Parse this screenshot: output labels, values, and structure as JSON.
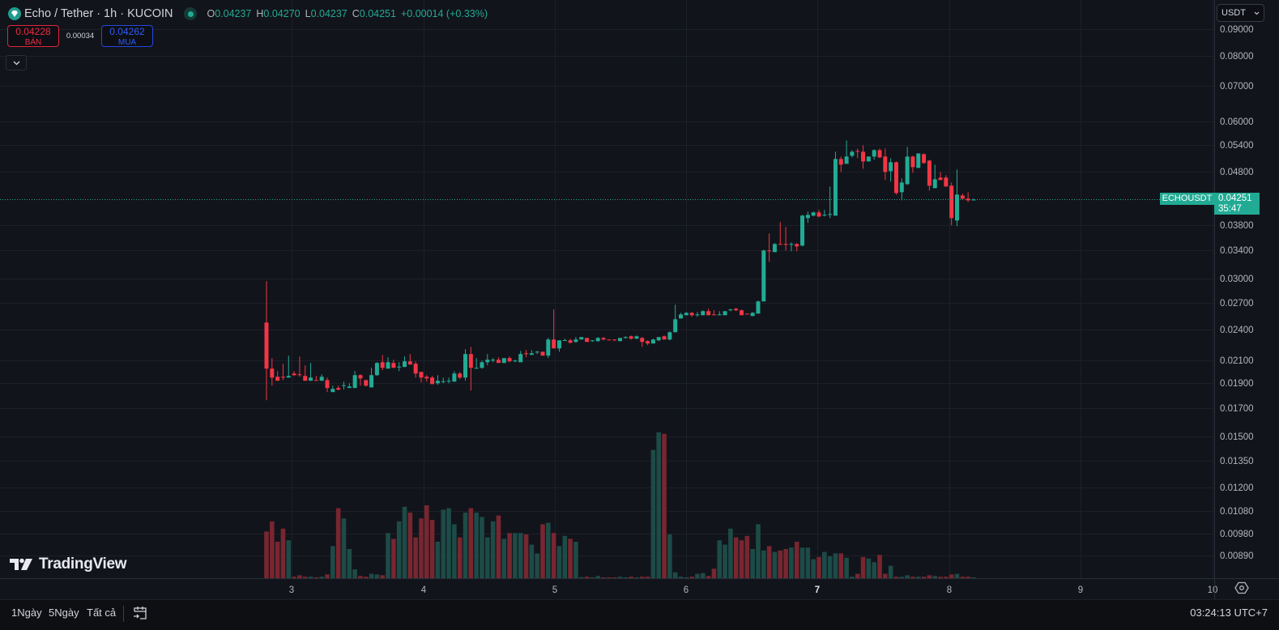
{
  "header": {
    "title": "Echo / Tether · 1h · KUCOIN",
    "ohlc": {
      "o_label": "O",
      "o": "0.04237",
      "h_label": "H",
      "h": "0.04270",
      "l_label": "L",
      "l": "0.04237",
      "c_label": "C",
      "c": "0.04251",
      "change": "+0.00014 (+0.33%)"
    },
    "status_color": "#22ab94"
  },
  "trade": {
    "sell_price": "0.04228",
    "sell_label": "BÁN",
    "spread": "0.00034",
    "buy_price": "0.04262",
    "buy_label": "MUA"
  },
  "currency_select": "USDT",
  "price_marker": {
    "symbol": "ECHOUSDT",
    "price": "0.04251",
    "countdown": "35:47"
  },
  "branding": "TradingView",
  "bottom_bar": {
    "ranges": [
      "1Ngày",
      "5Ngày",
      "Tất cả"
    ],
    "clock": "03:24:13 UTC+7"
  },
  "colors": {
    "up": "#22ab94",
    "down": "#f23645",
    "up_volume": "#1d4b47",
    "down_volume": "#782630",
    "background": "#12141b"
  },
  "chart_data": {
    "type": "candlestick",
    "symbol": "ECHOUSDT",
    "interval": "1h",
    "y_scale": "log",
    "ylim": [
      0.00805,
      0.1022
    ],
    "grid": true,
    "y_ticks": [
      "0.09000",
      "0.08000",
      "0.07000",
      "0.06000",
      "0.05400",
      "0.04800",
      "0.03800",
      "0.03400",
      "0.03000",
      "0.02700",
      "0.02400",
      "0.02100",
      "0.01900",
      "0.01700",
      "0.01500",
      "0.01350",
      "0.01200",
      "0.01080",
      "0.00980",
      "0.00890"
    ],
    "x_ticks": [
      "3",
      "4",
      "5",
      "6",
      "7",
      "8",
      "9",
      "10"
    ],
    "x_tick_bold": "7",
    "ohlc_fields": [
      "open",
      "high",
      "low",
      "close"
    ],
    "candles": [
      [
        0.02476,
        0.02969,
        0.0176,
        0.02022
      ],
      [
        0.02022,
        0.02118,
        0.01876,
        0.01944
      ],
      [
        0.01951,
        0.02,
        0.01917,
        0.01917
      ],
      [
        0.01951,
        0.02066,
        0.01923,
        0.01944
      ],
      [
        0.01944,
        0.02141,
        0.01944,
        0.01958
      ],
      [
        0.01979,
        0.02,
        0.01958,
        0.01965
      ],
      [
        0.01972,
        0.02133,
        0.01951,
        0.01965
      ],
      [
        0.01958,
        0.02051,
        0.01917,
        0.01917
      ],
      [
        0.01917,
        0.02073,
        0.01917,
        0.01944
      ],
      [
        0.01923,
        0.01958,
        0.01917,
        0.01917
      ],
      [
        0.01917,
        0.01972,
        0.01917,
        0.01951
      ],
      [
        0.01923,
        0.01944,
        0.01824,
        0.01857
      ],
      [
        0.01824,
        0.01876,
        0.01824,
        0.0185
      ],
      [
        0.01857,
        0.01876,
        0.01837,
        0.01844
      ],
      [
        0.01876,
        0.0191,
        0.01844,
        0.0188
      ],
      [
        0.01857,
        0.01896,
        0.01857,
        0.01869
      ],
      [
        0.01857,
        0.02,
        0.01857,
        0.01965
      ],
      [
        0.01965,
        0.01972,
        0.01876,
        0.01937
      ],
      [
        0.01923,
        0.01923,
        0.01869,
        0.01876
      ],
      [
        0.01862,
        0.02029,
        0.01862,
        0.01965
      ],
      [
        0.01965,
        0.0208,
        0.01958,
        0.02073
      ],
      [
        0.0208,
        0.02148,
        0.02008,
        0.02029
      ],
      [
        0.02022,
        0.02126,
        0.02022,
        0.0208
      ],
      [
        0.02073,
        0.02103,
        0.02029,
        0.02029
      ],
      [
        0.02037,
        0.0208,
        0.02,
        0.0204
      ],
      [
        0.02037,
        0.02133,
        0.02037,
        0.02088
      ],
      [
        0.02088,
        0.02156,
        0.02059,
        0.02059
      ],
      [
        0.02066,
        0.02088,
        0.01944,
        0.01979
      ],
      [
        0.01993,
        0.01993,
        0.01903,
        0.01944
      ],
      [
        0.01951,
        0.01965,
        0.0191,
        0.01937
      ],
      [
        0.01944,
        0.01958,
        0.01889,
        0.01889
      ],
      [
        0.01896,
        0.01965,
        0.01883,
        0.01917
      ],
      [
        0.0191,
        0.01944,
        0.01896,
        0.01913
      ],
      [
        0.01914,
        0.01944,
        0.01896,
        0.01917
      ],
      [
        0.0191,
        0.02,
        0.0191,
        0.01979
      ],
      [
        0.01979,
        0.01993,
        0.0193,
        0.01944
      ],
      [
        0.01944,
        0.02202,
        0.01917,
        0.02156
      ],
      [
        0.02156,
        0.02225,
        0.01837,
        0.02029
      ],
      [
        0.02022,
        0.02118,
        0.02022,
        0.02029
      ],
      [
        0.02029,
        0.02095,
        0.02022,
        0.0208
      ],
      [
        0.0208,
        0.02156,
        0.02051,
        0.02103
      ],
      [
        0.02095,
        0.02118,
        0.0208,
        0.02103
      ],
      [
        0.02103,
        0.02126,
        0.02073,
        0.02073
      ],
      [
        0.02073,
        0.02118,
        0.02073,
        0.02118
      ],
      [
        0.02118,
        0.02133,
        0.0208,
        0.02088
      ],
      [
        0.02088,
        0.02103,
        0.0208,
        0.02095
      ],
      [
        0.0208,
        0.02186,
        0.0208,
        0.02156
      ],
      [
        0.02163,
        0.02194,
        0.02126,
        0.02156
      ],
      [
        0.02148,
        0.02194,
        0.02148,
        0.02163
      ],
      [
        0.02171,
        0.02186,
        0.02156,
        0.02178
      ],
      [
        0.02178,
        0.02178,
        0.02141,
        0.02141
      ],
      [
        0.02141,
        0.02315,
        0.02118,
        0.02298
      ],
      [
        0.02298,
        0.02622,
        0.0221,
        0.0221
      ],
      [
        0.0221,
        0.0229,
        0.02178,
        0.0229
      ],
      [
        0.0229,
        0.02306,
        0.02282,
        0.02292
      ],
      [
        0.0229,
        0.02306,
        0.02258,
        0.02266
      ],
      [
        0.02274,
        0.02323,
        0.02266,
        0.02298
      ],
      [
        0.02298,
        0.02323,
        0.02298,
        0.02323
      ],
      [
        0.02314,
        0.02314,
        0.02274,
        0.02274
      ],
      [
        0.02282,
        0.0229,
        0.02274,
        0.0229
      ],
      [
        0.02282,
        0.02323,
        0.02274,
        0.02314
      ],
      [
        0.02314,
        0.02323,
        0.0229,
        0.02298
      ],
      [
        0.02298,
        0.02298,
        0.0229,
        0.0229
      ],
      [
        0.02298,
        0.02298,
        0.02282,
        0.0229
      ],
      [
        0.02282,
        0.02314,
        0.02282,
        0.02314
      ],
      [
        0.02314,
        0.02331,
        0.02306,
        0.02323
      ],
      [
        0.02331,
        0.02339,
        0.02298,
        0.02306
      ],
      [
        0.02306,
        0.02339,
        0.02306,
        0.02331
      ],
      [
        0.02314,
        0.02323,
        0.02225,
        0.02274
      ],
      [
        0.02282,
        0.0229,
        0.02242,
        0.02258
      ],
      [
        0.02258,
        0.02306,
        0.02258,
        0.02298
      ],
      [
        0.0229,
        0.02323,
        0.02282,
        0.02323
      ],
      [
        0.02331,
        0.02339,
        0.02298,
        0.02298
      ],
      [
        0.02298,
        0.02381,
        0.0229,
        0.02373
      ],
      [
        0.02373,
        0.02678,
        0.02373,
        0.02512
      ],
      [
        0.02521,
        0.02584,
        0.02521,
        0.02566
      ],
      [
        0.02557,
        0.02593,
        0.02557,
        0.02584
      ],
      [
        0.02584,
        0.02593,
        0.02539,
        0.02557
      ],
      [
        0.02557,
        0.02593,
        0.02539,
        0.02566
      ],
      [
        0.02557,
        0.02613,
        0.02557,
        0.02603
      ],
      [
        0.02603,
        0.02631,
        0.02557,
        0.02557
      ],
      [
        0.02566,
        0.02613,
        0.02557,
        0.02557
      ],
      [
        0.02557,
        0.02603,
        0.02557,
        0.02566
      ],
      [
        0.02557,
        0.02603,
        0.02557,
        0.02603
      ],
      [
        0.02613,
        0.02631,
        0.02603,
        0.02622
      ],
      [
        0.02631,
        0.02641,
        0.02603,
        0.02613
      ],
      [
        0.02613,
        0.02622,
        0.02557,
        0.02557
      ],
      [
        0.02575,
        0.02575,
        0.02566,
        0.02566
      ],
      [
        0.02548,
        0.02593,
        0.02548,
        0.02584
      ],
      [
        0.02575,
        0.02727,
        0.02575,
        0.02717
      ],
      [
        0.02717,
        0.03411,
        0.02717,
        0.03399
      ],
      [
        0.03399,
        0.03662,
        0.03234,
        0.03387
      ],
      [
        0.03375,
        0.0351,
        0.03375,
        0.03497
      ],
      [
        0.03497,
        0.0385,
        0.03485,
        0.03485
      ],
      [
        0.03497,
        0.03769,
        0.03399,
        0.03485
      ],
      [
        0.03485,
        0.03522,
        0.03387,
        0.03497
      ],
      [
        0.03497,
        0.0351,
        0.03387,
        0.0346
      ],
      [
        0.03473,
        0.03975,
        0.0346,
        0.03961
      ],
      [
        0.03919,
        0.04032,
        0.03837,
        0.03975
      ],
      [
        0.03961,
        0.04032,
        0.03947,
        0.04018
      ],
      [
        0.04018,
        0.04061,
        0.03933,
        0.03947
      ],
      [
        0.03975,
        0.04061,
        0.03947,
        0.03978
      ],
      [
        0.03975,
        0.04502,
        0.03919,
        0.03989
      ],
      [
        0.03961,
        0.05245,
        0.03961,
        0.05081
      ],
      [
        0.05081,
        0.05136,
        0.048,
        0.04956
      ],
      [
        0.04974,
        0.05513,
        0.04974,
        0.05136
      ],
      [
        0.05154,
        0.05283,
        0.05117,
        0.05245
      ],
      [
        0.05264,
        0.05321,
        0.05099,
        0.05245
      ],
      [
        0.05245,
        0.05397,
        0.04868,
        0.05027
      ],
      [
        0.05027,
        0.05136,
        0.05027,
        0.05136
      ],
      [
        0.05136,
        0.05302,
        0.05063,
        0.05283
      ],
      [
        0.05283,
        0.05321,
        0.05099,
        0.05117
      ],
      [
        0.05136,
        0.05321,
        0.04632,
        0.048
      ],
      [
        0.04817,
        0.05099,
        0.04599,
        0.05009
      ],
      [
        0.05009,
        0.05027,
        0.04345,
        0.04375
      ],
      [
        0.04391,
        0.04665,
        0.04237,
        0.04582
      ],
      [
        0.0455,
        0.05359,
        0.04533,
        0.05136
      ],
      [
        0.05136,
        0.05154,
        0.04783,
        0.04903
      ],
      [
        0.04886,
        0.05207,
        0.04886,
        0.05207
      ],
      [
        0.0519,
        0.05207,
        0.04974,
        0.04992
      ],
      [
        0.05045,
        0.05063,
        0.04422,
        0.04518
      ],
      [
        0.0447,
        0.04956,
        0.0447,
        0.04648
      ],
      [
        0.04682,
        0.048,
        0.04632,
        0.04632
      ],
      [
        0.04682,
        0.04732,
        0.04502,
        0.04502
      ],
      [
        0.04518,
        0.04582,
        0.03795,
        0.03919
      ],
      [
        0.03878,
        0.04851,
        0.03782,
        0.04345
      ],
      [
        0.04329,
        0.0436,
        0.04253,
        0.04268
      ],
      [
        0.04268,
        0.04391,
        0.04208,
        0.04237
      ],
      [
        0.04237,
        0.0427,
        0.04237,
        0.04251
      ]
    ],
    "volume_relative": [
      32,
      39,
      25,
      34,
      26,
      1,
      2,
      1,
      1,
      0.6,
      1,
      2.6,
      22,
      48,
      41,
      20,
      6,
      1.5,
      1,
      3,
      2.6,
      2,
      31,
      27,
      39,
      49,
      45,
      28,
      41,
      50,
      40,
      25,
      47,
      48,
      37,
      28,
      45,
      48,
      45,
      42,
      28,
      39,
      43,
      27,
      31,
      31,
      31,
      30,
      23,
      17,
      37,
      38,
      31,
      22,
      29,
      27,
      25,
      0.7,
      1,
      0.5,
      1.5,
      0.5,
      0.5,
      0.5,
      1,
      0.5,
      1,
      0.5,
      1,
      1,
      88,
      100,
      99,
      30,
      4,
      1,
      0.5,
      1,
      3,
      3.5,
      1.5,
      6.5,
      26,
      23,
      34,
      28,
      26,
      29,
      20,
      37,
      19,
      22,
      18,
      19,
      20,
      21,
      25,
      21,
      21,
      13,
      14.5,
      18,
      15,
      17,
      17,
      14,
      1,
      3,
      14.5,
      13.5,
      11,
      16,
      3,
      8.5,
      1,
      1,
      2,
      1,
      1,
      1,
      2,
      1.5,
      1,
      1,
      2.5,
      3,
      1,
      1,
      0.5
    ],
    "last_price": 0.04251
  }
}
